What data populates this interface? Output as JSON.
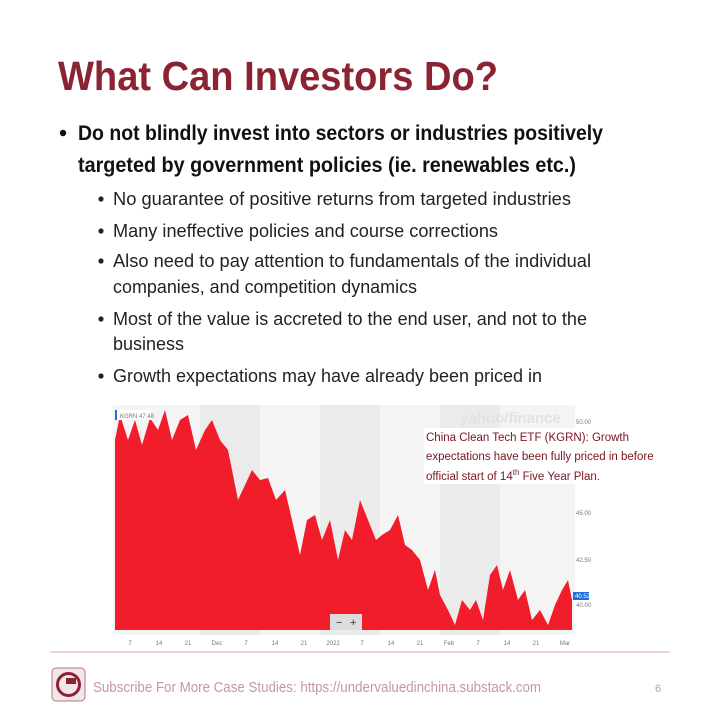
{
  "header": {
    "title": "What Can Investors Do?"
  },
  "bullets": [
    {
      "lines": [
        "Do not blindly invest into sectors or industries positively",
        "targeted by government policies (ie. renewables etc.)"
      ],
      "sub": [
        {
          "lines": [
            "No guarantee of positive returns from targeted industries"
          ]
        },
        {
          "lines": [
            "Many ineffective policies and course corrections"
          ]
        },
        {
          "lines": [
            "Also need to pay attention to fundamentals of the individual",
            "companies, and competition dynamics"
          ]
        },
        {
          "lines": [
            "Most of the value is accreted to the end user, and not to the",
            "business"
          ]
        },
        {
          "lines": [
            "Growth expectations may have already been priced in"
          ]
        }
      ]
    }
  ],
  "figure": {
    "ticker": "KGRN 47.48",
    "brand": "yahoo/finance",
    "y_labels": [
      "50.00",
      "45.00",
      "42.50",
      "40.00"
    ],
    "last_price": "40.52",
    "x_labels": [
      "7",
      "14",
      "21",
      "Dec",
      "7",
      "14",
      "21",
      "2022",
      "7",
      "14",
      "21",
      "Feb",
      "7",
      "14",
      "21",
      "Mar"
    ],
    "annotation": {
      "line1": "China Clean Tech ETF (KGRN): Growth",
      "line2": "expectations have been fully priced in before",
      "line3_a": "official start of 14",
      "line3_sup": "th",
      "line3_b": " Five Year Plan."
    }
  },
  "footer": {
    "text": "Subscribe For More Case Studies: https://undervaluedinchina.substack.com",
    "page": "6"
  }
}
